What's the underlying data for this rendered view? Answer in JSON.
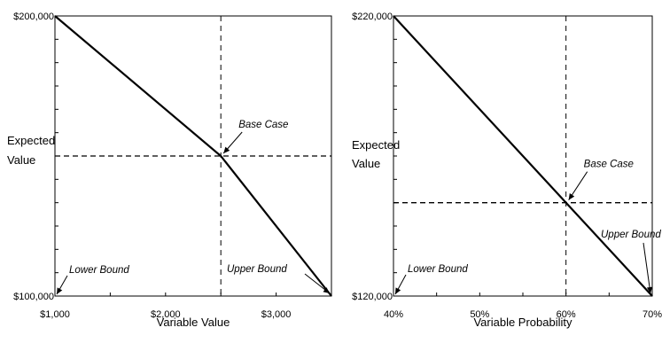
{
  "chart_data": [
    {
      "type": "line",
      "xlabel": "Variable Value",
      "ylabel_lines": [
        "Expected",
        "Value"
      ],
      "xlim": [
        1000,
        3500
      ],
      "ylim": [
        100000,
        200000
      ],
      "x_ticks": [
        1000,
        2000,
        3000
      ],
      "x_tick_labels": [
        "$1,000",
        "$2,000",
        "$3,000"
      ],
      "y_tick_labels": [
        {
          "value": 200000,
          "label": "$200,000"
        },
        {
          "value": 100000,
          "label": "$100,000"
        }
      ],
      "series": [
        {
          "x": [
            1000,
            2500,
            3500
          ],
          "y": [
            200000,
            150000,
            100000
          ]
        }
      ],
      "base_case": {
        "x": 2500,
        "y": 150000,
        "label": "Base Case"
      },
      "lower_bound": {
        "x": 1000,
        "y": 100000,
        "label": "Lower Bound"
      },
      "upper_bound": {
        "x": 3500,
        "y": 100000,
        "label": "Upper Bound"
      },
      "grid": false
    },
    {
      "type": "line",
      "xlabel": "Variable Probability",
      "ylabel_lines": [
        "Expected",
        "Value"
      ],
      "xlim": [
        40,
        70
      ],
      "ylim": [
        120000,
        220000
      ],
      "x_ticks": [
        40,
        50,
        60,
        70
      ],
      "x_tick_labels": [
        "40%",
        "50%",
        "60%",
        "70%"
      ],
      "y_tick_labels": [
        {
          "value": 220000,
          "label": "$220,000"
        },
        {
          "value": 120000,
          "label": "$120,000"
        }
      ],
      "series": [
        {
          "x": [
            40,
            70
          ],
          "y": [
            220000,
            120000
          ]
        }
      ],
      "base_case": {
        "x": 60,
        "y": 153333,
        "label": "Base Case"
      },
      "lower_bound": {
        "x": 40,
        "y": 120000,
        "label": "Lower Bound"
      },
      "upper_bound": {
        "x": 70,
        "y": 120000,
        "label": "Upper Bound"
      },
      "grid": false
    }
  ]
}
